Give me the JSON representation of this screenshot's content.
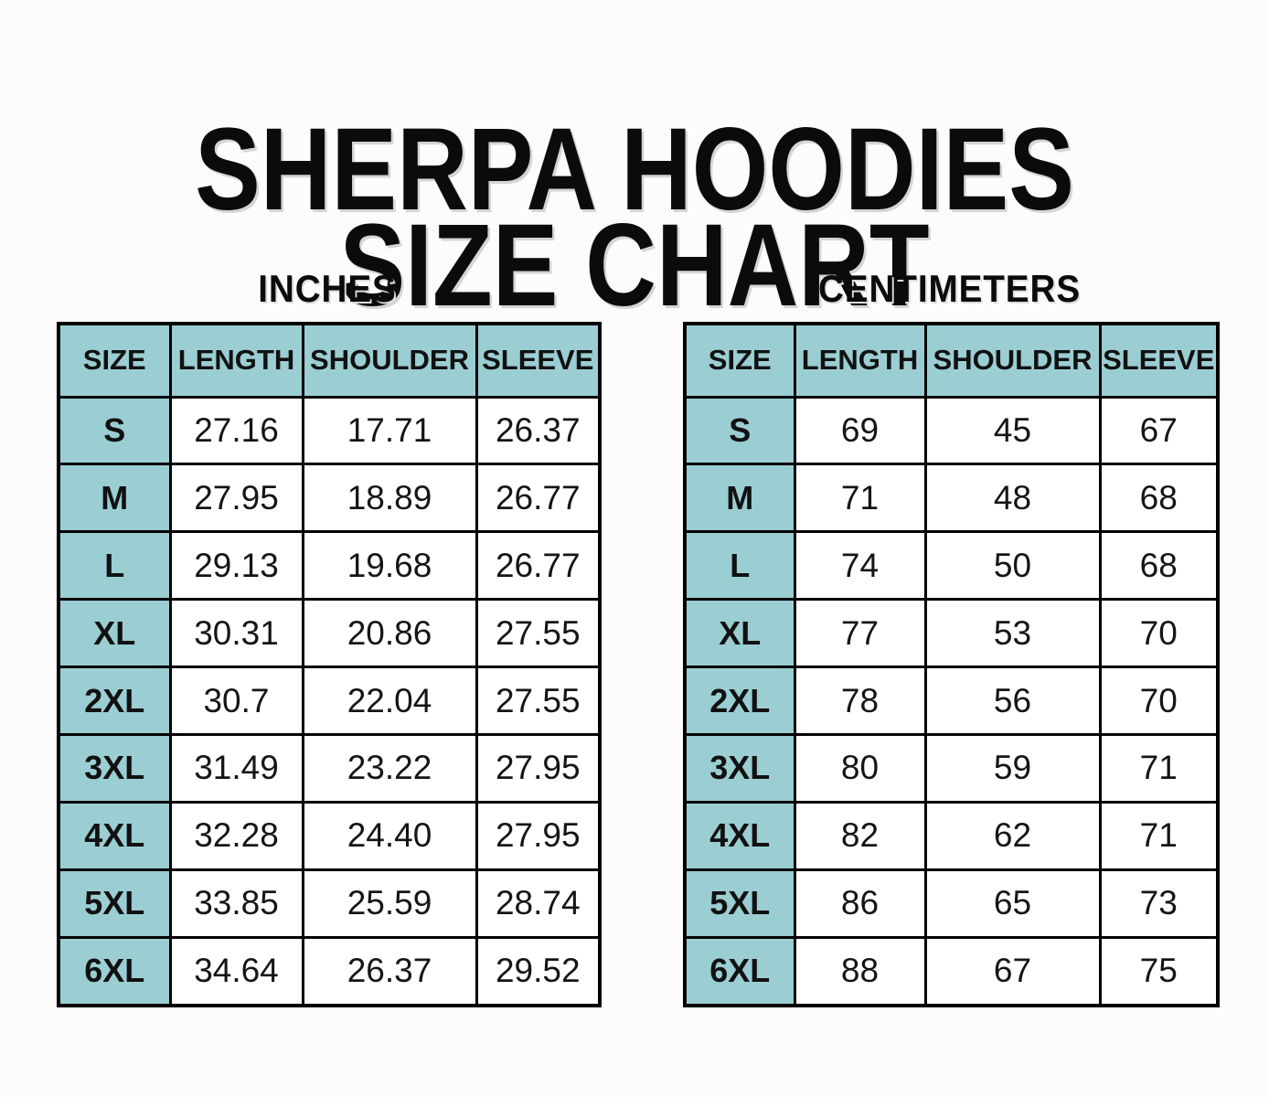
{
  "header": {
    "title": "SHERPA HOODIES\nSIZE CHART"
  },
  "colors": {
    "accent_teal": "#9bced3",
    "grid_border": "#000000",
    "background": "#fdfbfc",
    "title_text": "#0b0b0b"
  },
  "chart_data": [
    {
      "type": "table",
      "title": "INCHES",
      "columns": [
        "SIZE",
        "LENGTH",
        "SHOULDER",
        "SLEEVE"
      ],
      "rows": [
        [
          "S",
          "27.16",
          "17.71",
          "26.37"
        ],
        [
          "M",
          "27.95",
          "18.89",
          "26.77"
        ],
        [
          "L",
          "29.13",
          "19.68",
          "26.77"
        ],
        [
          "XL",
          "30.31",
          "20.86",
          "27.55"
        ],
        [
          "2XL",
          "30.7",
          "22.04",
          "27.55"
        ],
        [
          "3XL",
          "31.49",
          "23.22",
          "27.95"
        ],
        [
          "4XL",
          "32.28",
          "24.40",
          "27.95"
        ],
        [
          "5XL",
          "33.85",
          "25.59",
          "28.74"
        ],
        [
          "6XL",
          "34.64",
          "26.37",
          "29.52"
        ]
      ]
    },
    {
      "type": "table",
      "title": "CENTIMETERS",
      "columns": [
        "SIZE",
        "LENGTH",
        "SHOULDER",
        "SLEEVE"
      ],
      "rows": [
        [
          "S",
          "69",
          "45",
          "67"
        ],
        [
          "M",
          "71",
          "48",
          "68"
        ],
        [
          "L",
          "74",
          "50",
          "68"
        ],
        [
          "XL",
          "77",
          "53",
          "70"
        ],
        [
          "2XL",
          "78",
          "56",
          "70"
        ],
        [
          "3XL",
          "80",
          "59",
          "71"
        ],
        [
          "4XL",
          "82",
          "62",
          "71"
        ],
        [
          "5XL",
          "86",
          "65",
          "73"
        ],
        [
          "6XL",
          "88",
          "67",
          "75"
        ]
      ]
    }
  ]
}
